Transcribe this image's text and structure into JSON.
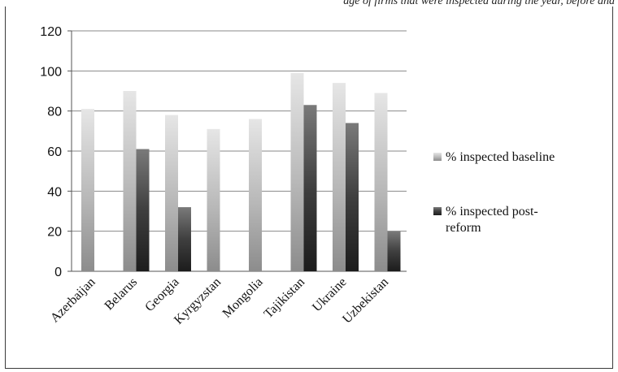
{
  "caption_fragment": "age of firms that were inspected during the year, before and",
  "chart_data": {
    "type": "bar",
    "title": "",
    "xlabel": "",
    "ylabel": "",
    "ylim": [
      0,
      120
    ],
    "yticks": [
      0,
      20,
      40,
      60,
      80,
      100,
      120
    ],
    "grid": true,
    "legend_position": "right",
    "categories": [
      "Azerbaijan",
      "Belarus",
      "Georgia",
      "Kyrgyzstan",
      "Mongolia",
      "Tajikistan",
      "Ukraine",
      "Uzbekistan"
    ],
    "series": [
      {
        "name": "% inspected  baseline",
        "values": [
          81,
          90,
          78,
          71,
          76,
          99,
          94,
          89
        ],
        "color": "#b3b3b3"
      },
      {
        "name": "% inspected  post-reform",
        "values": [
          null,
          61,
          32,
          null,
          null,
          83,
          74,
          20
        ],
        "color": "#4a4a4a"
      }
    ]
  }
}
